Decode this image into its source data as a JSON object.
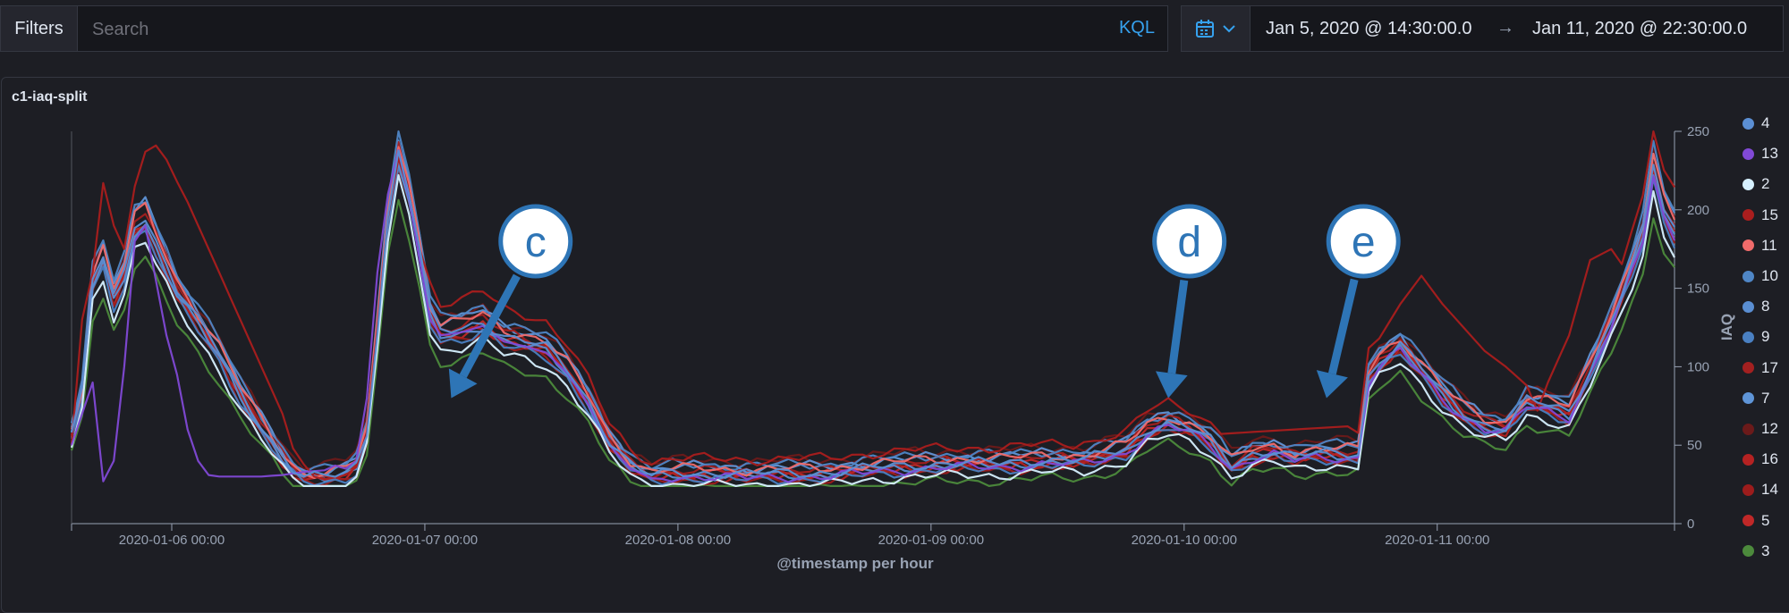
{
  "query_bar": {
    "filters_label": "Filters",
    "search_placeholder": "Search",
    "kql_label": "KQL",
    "date_start": "Jan 5, 2020 @ 14:30:00.0",
    "date_arrow": "→",
    "date_end": "Jan 11, 2020 @ 22:30:00.0"
  },
  "panel": {
    "title": "c1-iaq-split"
  },
  "annotations": [
    {
      "label": "c",
      "x": 44,
      "y": 190,
      "tip": 36
    },
    {
      "label": "d",
      "x": 106,
      "y": 190,
      "tip": 104
    },
    {
      "label": "e",
      "x": 122.5,
      "y": 190,
      "tip": 119
    }
  ],
  "colors": {
    "background": "#1d1e24",
    "axis": "#98a2b3",
    "text": "#dfe5ef",
    "annotation": "#2e75b6"
  },
  "chart_data": {
    "type": "line",
    "title": "",
    "xlabel": "@timestamp per hour",
    "ylabel": "IAQ",
    "x_start": "2020-01-05 14:30",
    "x_end": "2020-01-11 22:30",
    "x_step": "1h",
    "x_ticks": [
      "2020-01-06 00:00",
      "2020-01-07 00:00",
      "2020-01-08 00:00",
      "2020-01-09 00:00",
      "2020-01-10 00:00",
      "2020-01-11 00:00"
    ],
    "ylim": [
      0,
      250
    ],
    "y_ticks": [
      "0",
      "50",
      "100",
      "150",
      "200",
      "250"
    ],
    "legend_position": "right",
    "base_curve": [
      [
        0,
        55
      ],
      [
        1,
        80
      ],
      [
        2,
        150
      ],
      [
        3,
        165
      ],
      [
        4,
        140
      ],
      [
        5,
        155
      ],
      [
        6,
        185
      ],
      [
        7,
        190
      ],
      [
        8,
        175
      ],
      [
        9,
        160
      ],
      [
        10,
        145
      ],
      [
        12,
        125
      ],
      [
        14,
        105
      ],
      [
        16,
        80
      ],
      [
        18,
        60
      ],
      [
        20,
        40
      ],
      [
        21,
        32
      ],
      [
        22,
        27
      ],
      [
        24,
        27
      ],
      [
        26,
        30
      ],
      [
        27,
        35
      ],
      [
        28,
        55
      ],
      [
        29,
        120
      ],
      [
        30,
        190
      ],
      [
        31,
        230
      ],
      [
        32,
        205
      ],
      [
        33,
        170
      ],
      [
        34,
        130
      ],
      [
        35,
        118
      ],
      [
        37,
        120
      ],
      [
        39,
        125
      ],
      [
        41,
        115
      ],
      [
        43,
        112
      ],
      [
        45,
        108
      ],
      [
        47,
        95
      ],
      [
        49,
        75
      ],
      [
        51,
        50
      ],
      [
        53,
        35
      ],
      [
        55,
        28
      ],
      [
        57,
        30
      ],
      [
        60,
        30
      ],
      [
        64,
        29
      ],
      [
        68,
        30
      ],
      [
        72,
        30
      ],
      [
        76,
        33
      ],
      [
        80,
        35
      ],
      [
        84,
        36
      ],
      [
        88,
        36
      ],
      [
        92,
        38
      ],
      [
        96,
        38
      ],
      [
        100,
        45
      ],
      [
        102,
        57
      ],
      [
        104,
        62
      ],
      [
        106,
        58
      ],
      [
        108,
        50
      ],
      [
        110,
        35
      ],
      [
        112,
        42
      ],
      [
        114,
        44
      ],
      [
        116,
        40
      ],
      [
        118,
        42
      ],
      [
        120,
        42
      ],
      [
        122,
        42
      ],
      [
        123,
        90
      ],
      [
        124,
        100
      ],
      [
        126,
        110
      ],
      [
        128,
        95
      ],
      [
        130,
        80
      ],
      [
        132,
        68
      ],
      [
        134,
        60
      ],
      [
        136,
        58
      ],
      [
        138,
        75
      ],
      [
        140,
        72
      ],
      [
        142,
        68
      ],
      [
        144,
        95
      ],
      [
        146,
        125
      ],
      [
        148,
        160
      ],
      [
        149,
        180
      ],
      [
        150,
        222
      ],
      [
        151,
        195
      ],
      [
        152,
        182
      ]
    ],
    "series": [
      {
        "name": "4",
        "color": "#5b8fd4",
        "offset": 2,
        "scale": 1.02
      },
      {
        "name": "13",
        "color": "#8149d6",
        "offset": 0,
        "scale": 1.0,
        "curve": [
          [
            0,
            50
          ],
          [
            1,
            70
          ],
          [
            2,
            90
          ],
          [
            3,
            27
          ],
          [
            4,
            40
          ],
          [
            5,
            100
          ],
          [
            6,
            180
          ],
          [
            7,
            190
          ],
          [
            8,
            155
          ],
          [
            9,
            120
          ],
          [
            10,
            95
          ],
          [
            11,
            60
          ],
          [
            12,
            40
          ],
          [
            13,
            31
          ],
          [
            14,
            30
          ],
          [
            16,
            30
          ],
          [
            18,
            30
          ],
          [
            20,
            31
          ],
          [
            22,
            33
          ],
          [
            24,
            34
          ],
          [
            25,
            37
          ],
          [
            26,
            35
          ],
          [
            27,
            40
          ],
          [
            28,
            80
          ],
          [
            29,
            160
          ],
          [
            30,
            210
          ],
          [
            31,
            238
          ],
          [
            32,
            208
          ],
          [
            33,
            168
          ],
          [
            34,
            130
          ],
          [
            35,
            120
          ],
          [
            37,
            122
          ],
          [
            39,
            126
          ],
          [
            41,
            116
          ],
          [
            43,
            113
          ],
          [
            45,
            109
          ],
          [
            47,
            96
          ],
          [
            49,
            76
          ],
          [
            51,
            50
          ],
          [
            53,
            35
          ],
          [
            55,
            29
          ]
        ]
      },
      {
        "name": "2",
        "color": "#d6f0ff",
        "offset": -4,
        "scale": 0.97
      },
      {
        "name": "15",
        "color": "#aa1e1e",
        "offset": 8,
        "scale": 1.12,
        "curve": [
          [
            0,
            50
          ],
          [
            1,
            130
          ],
          [
            2,
            160
          ],
          [
            3,
            217
          ],
          [
            4,
            190
          ],
          [
            5,
            175
          ],
          [
            6,
            215
          ],
          [
            7,
            237
          ],
          [
            8,
            241
          ],
          [
            9,
            232
          ],
          [
            10,
            218
          ],
          [
            11,
            205
          ],
          [
            12,
            190
          ],
          [
            13,
            175
          ],
          [
            14,
            160
          ],
          [
            16,
            130
          ],
          [
            18,
            100
          ],
          [
            20,
            70
          ],
          [
            21,
            48
          ],
          [
            22,
            38
          ],
          [
            23,
            30
          ],
          [
            24,
            28
          ],
          [
            26,
            31
          ],
          [
            27,
            36
          ],
          [
            28,
            58
          ],
          [
            29,
            125
          ],
          [
            30,
            195
          ],
          [
            31,
            233
          ],
          [
            32,
            210
          ],
          [
            33,
            175
          ]
        ]
      },
      {
        "name": "11",
        "color": "#f06b6b",
        "offset": 4,
        "scale": 1.04
      },
      {
        "name": "10",
        "color": "#4f86c6",
        "offset": 6,
        "scale": 1.06
      },
      {
        "name": "8",
        "color": "#5a8ed2",
        "offset": 1,
        "scale": 1.0
      },
      {
        "name": "9",
        "color": "#4a80c2",
        "offset": -1,
        "scale": 0.99
      },
      {
        "name": "17",
        "color": "#a32020",
        "offset": 3,
        "scale": 1.03
      },
      {
        "name": "7",
        "color": "#5f95d8",
        "offset": 5,
        "scale": 1.05
      },
      {
        "name": "12",
        "color": "#6b1a1a",
        "offset": 10,
        "scale": 1.02
      },
      {
        "name": "16",
        "color": "#b52222",
        "offset": 0,
        "scale": 1.01
      },
      {
        "name": "14",
        "color": "#9c1c1c",
        "offset": -2,
        "scale": 1.0
      },
      {
        "name": "5",
        "color": "#c02828",
        "offset": 2,
        "scale": 1.0
      },
      {
        "name": "3",
        "color": "#4c8a3c",
        "offset": -6,
        "scale": 0.92
      }
    ]
  }
}
